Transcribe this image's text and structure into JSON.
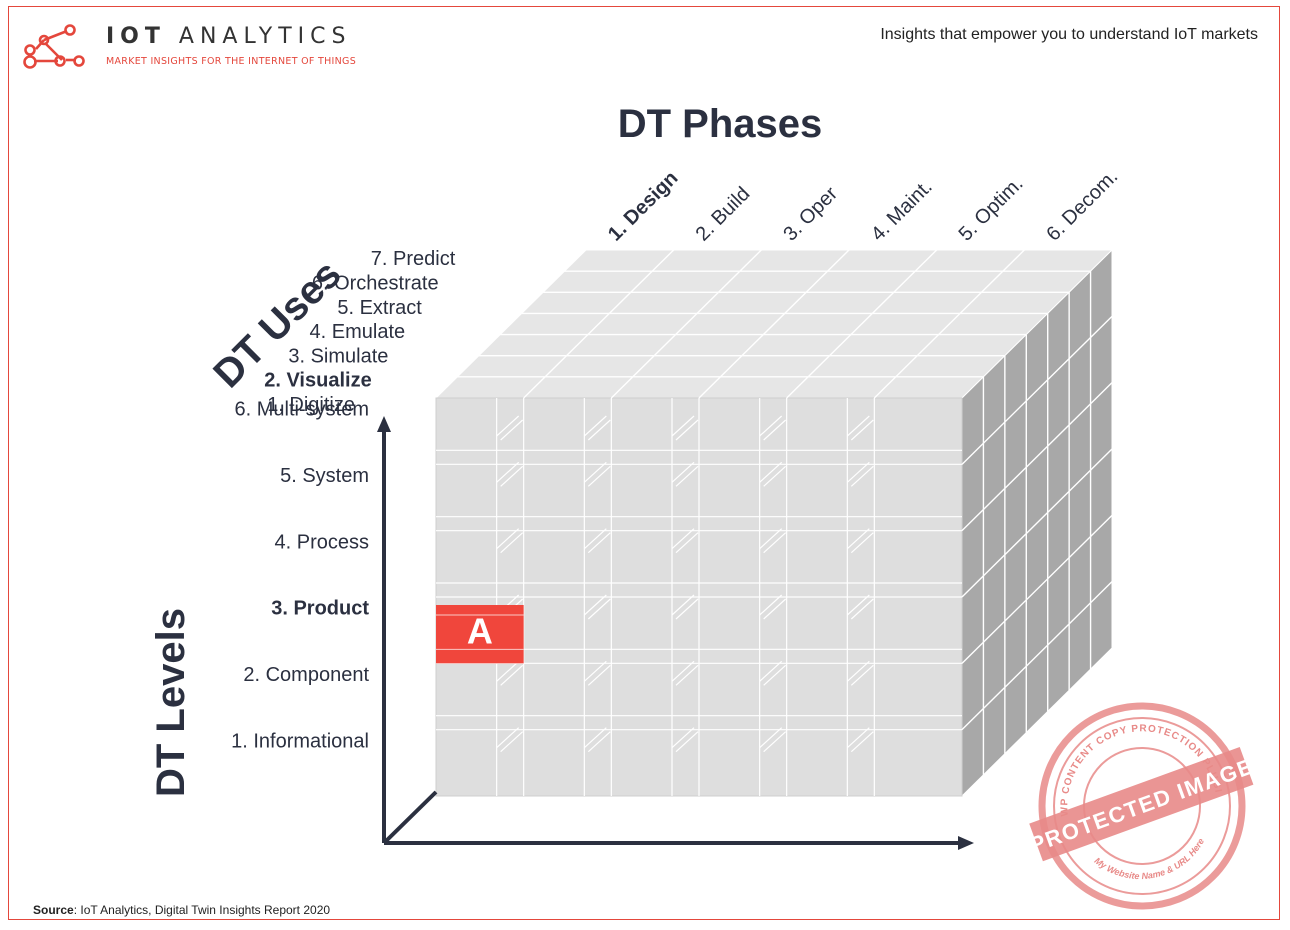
{
  "header": {
    "brand_name_bold": "IOT",
    "brand_name_light": "ANALYTICS",
    "brand_tagline": "MARKET INSIGHTS FOR THE INTERNET OF THINGS",
    "tagline": "Insights that empower you to understand IoT markets"
  },
  "diagram": {
    "title": "DT Phases",
    "uses_title": "DT Uses",
    "levels_title": "DT Levels",
    "phases": [
      {
        "label": "1. Design",
        "bold": true
      },
      {
        "label": "2. Build",
        "bold": false
      },
      {
        "label": "3. Oper",
        "bold": false
      },
      {
        "label": "4. Maint.",
        "bold": false
      },
      {
        "label": "5. Optim.",
        "bold": false
      },
      {
        "label": "6. Decom.",
        "bold": false
      }
    ],
    "uses": [
      {
        "label": "7. Predict",
        "bold": false
      },
      {
        "label": "6. Orchestrate",
        "bold": false
      },
      {
        "label": "5. Extract",
        "bold": false
      },
      {
        "label": "4. Emulate",
        "bold": false
      },
      {
        "label": "3. Simulate",
        "bold": false
      },
      {
        "label": "2. Visualize",
        "bold": true
      },
      {
        "label": "1. Digitize",
        "bold": false
      }
    ],
    "levels": [
      {
        "label": "6. Multi-system",
        "bold": false
      },
      {
        "label": "5. System",
        "bold": false
      },
      {
        "label": "4. Process",
        "bold": false
      },
      {
        "label": "3. Product",
        "bold": true
      },
      {
        "label": "2. Component",
        "bold": false
      },
      {
        "label": "1. Informational",
        "bold": false
      }
    ],
    "highlight": {
      "label": "A",
      "phase": "1. Design",
      "level": "3. Product",
      "use": "2. Visualize",
      "color": "#f0463c"
    },
    "colors": {
      "accent": "#e4473c",
      "axis": "#2b3040",
      "cube_front": "#dedede",
      "cube_top": "#e6e6e6",
      "cube_side": "#a8a8a8",
      "grid_line": "#ffffff"
    }
  },
  "stamp": {
    "ring_text": "WP CONTENT COPY PROTECTION PLUGIN",
    "band_text": "PROTECTED IMAGE",
    "bottom_text": "My Website Name & URL Here",
    "color": "#e88a88"
  },
  "footer": {
    "source_label": "Source",
    "source_text": ": IoT Analytics, Digital Twin Insights Report 2020"
  }
}
